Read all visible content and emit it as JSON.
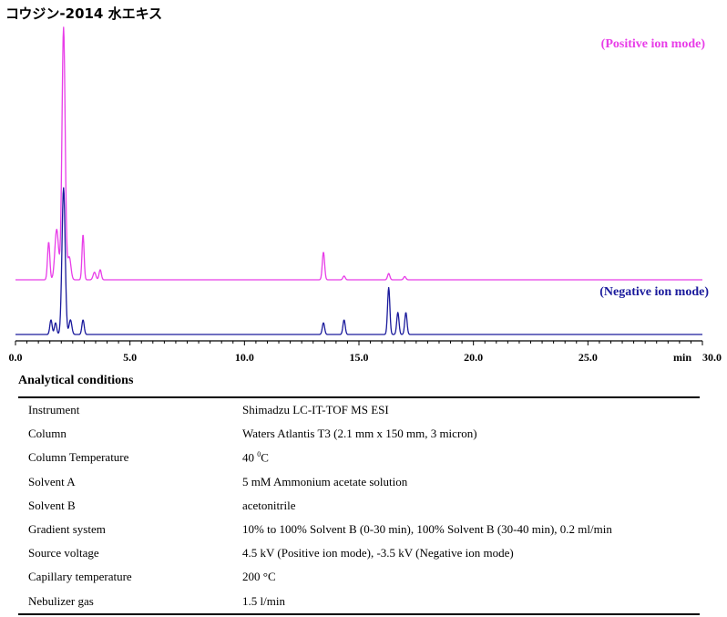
{
  "title": "コウジン-2014 水エキス",
  "chart_data": {
    "type": "line",
    "xlabel": "min",
    "xlim": [
      0,
      30
    ],
    "x_ticks": [
      "0.0",
      "5.0",
      "10.0",
      "15.0",
      "20.0",
      "25.0",
      "30.0"
    ],
    "series": [
      {
        "name": "(Positive ion mode)",
        "color": "#e83de8",
        "peaks": [
          {
            "rt": 1.45,
            "height": 0.15,
            "width": 0.05
          },
          {
            "rt": 1.8,
            "height": 0.2,
            "width": 0.08
          },
          {
            "rt": 2.1,
            "height": 1.0,
            "width": 0.07
          },
          {
            "rt": 2.35,
            "height": 0.09,
            "width": 0.07
          },
          {
            "rt": 2.95,
            "height": 0.18,
            "width": 0.045
          },
          {
            "rt": 3.45,
            "height": 0.03,
            "width": 0.06
          },
          {
            "rt": 3.7,
            "height": 0.04,
            "width": 0.05
          },
          {
            "rt": 13.45,
            "height": 0.11,
            "width": 0.05
          },
          {
            "rt": 14.35,
            "height": 0.015,
            "width": 0.05
          },
          {
            "rt": 16.3,
            "height": 0.025,
            "width": 0.05
          },
          {
            "rt": 17.0,
            "height": 0.013,
            "width": 0.05
          }
        ]
      },
      {
        "name": "(Negative ion mode)",
        "color": "#1a1a9c",
        "peaks": [
          {
            "rt": 1.55,
            "height": 0.1,
            "width": 0.05
          },
          {
            "rt": 1.75,
            "height": 0.08,
            "width": 0.05
          },
          {
            "rt": 2.1,
            "height": 1.0,
            "width": 0.07
          },
          {
            "rt": 2.4,
            "height": 0.1,
            "width": 0.06
          },
          {
            "rt": 2.95,
            "height": 0.1,
            "width": 0.05
          },
          {
            "rt": 13.45,
            "height": 0.08,
            "width": 0.05
          },
          {
            "rt": 14.35,
            "height": 0.1,
            "width": 0.05
          },
          {
            "rt": 16.3,
            "height": 0.32,
            "width": 0.05
          },
          {
            "rt": 16.7,
            "height": 0.15,
            "width": 0.05
          },
          {
            "rt": 17.05,
            "height": 0.15,
            "width": 0.05
          }
        ]
      }
    ],
    "grid": false
  },
  "conditions": {
    "title": "Analytical conditions",
    "rows": [
      {
        "label": "Instrument",
        "value": "Shimadzu LC-IT-TOF MS ESI"
      },
      {
        "label": "Column",
        "value": "Waters Atlantis T3 (2.1 mm x 150 mm, 3 micron)"
      },
      {
        "label": "Column Temperature",
        "value": "40 ",
        "sup": "0",
        "unit": "C"
      },
      {
        "label": "Solvent A",
        "value": "5 mM Ammonium acetate solution"
      },
      {
        "label": "Solvent B",
        "value": "acetonitrile"
      },
      {
        "label": "Gradient system",
        "value": "10% to 100% Solvent B (0-30 min), 100% Solvent B (30-40 min), 0.2 ml/min"
      },
      {
        "label": "Source voltage",
        "value": "4.5 kV (Positive ion mode), -3.5 kV (Negative ion mode)"
      },
      {
        "label": "Capillary temperature",
        "value": "200 °C"
      },
      {
        "label": "Nebulizer gas",
        "value": "1.5 l/min"
      }
    ]
  }
}
